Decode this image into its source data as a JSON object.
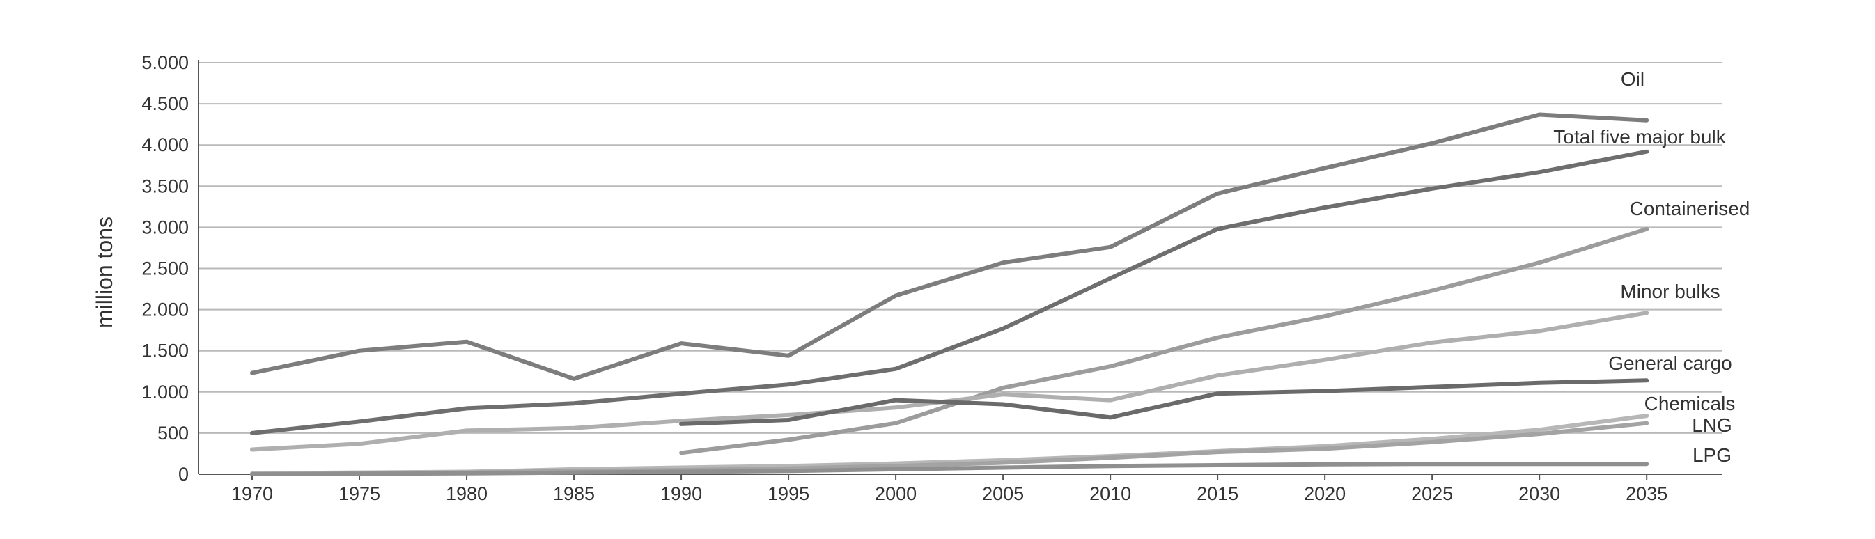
{
  "chart_data": {
    "type": "line",
    "title": "",
    "xlabel": "",
    "ylabel": "million tons",
    "ylim": [
      0,
      5000
    ],
    "yticks": [
      0,
      500,
      1000,
      1500,
      2000,
      2500,
      3000,
      3500,
      4000,
      4500,
      5000
    ],
    "ytick_labels": [
      "0",
      "500",
      "1.000",
      "1.500",
      "2.000",
      "2.500",
      "3.000",
      "3.500",
      "4.000",
      "4.500",
      "5.000"
    ],
    "x": [
      1970,
      1975,
      1980,
      1985,
      1990,
      1995,
      2000,
      2005,
      2010,
      2015,
      2020,
      2025,
      2030,
      2035
    ],
    "xtick_labels": [
      "1970",
      "1975",
      "1980",
      "1985",
      "1990",
      "1995",
      "2000",
      "2005",
      "2010",
      "2015",
      "2020",
      "2025",
      "2030",
      "2035"
    ],
    "grid": true,
    "legend": "labels at line ends",
    "series": [
      {
        "name": "Oil",
        "color": "#7d7d7d",
        "x": [
          1970,
          1975,
          1980,
          1985,
          1990,
          1995,
          2000,
          2005,
          2010,
          2015,
          2020,
          2025,
          2030,
          2035
        ],
        "values": [
          1230,
          1500,
          1610,
          1160,
          1590,
          1440,
          2170,
          2570,
          2760,
          3410,
          3720,
          4020,
          4370,
          4300
        ]
      },
      {
        "name": "Total five major bulk",
        "color": "#6e6e6e",
        "x": [
          1970,
          1975,
          1980,
          1985,
          1990,
          1995,
          2000,
          2005,
          2010,
          2015,
          2020,
          2025,
          2030,
          2035
        ],
        "values": [
          500,
          640,
          800,
          860,
          980,
          1090,
          1280,
          1770,
          2380,
          2980,
          3240,
          3470,
          3670,
          3920
        ]
      },
      {
        "name": "Containerised",
        "color": "#9c9c9c",
        "x": [
          1990,
          1995,
          2000,
          2005,
          2010,
          2015,
          2020,
          2025,
          2030,
          2035
        ],
        "values": [
          260,
          420,
          620,
          1050,
          1310,
          1660,
          1920,
          2230,
          2570,
          2980
        ]
      },
      {
        "name": "Minor bulks",
        "color": "#afafaf",
        "x": [
          1970,
          1975,
          1980,
          1985,
          1990,
          1995,
          2000,
          2005,
          2010,
          2015,
          2020,
          2025,
          2030,
          2035
        ],
        "values": [
          300,
          370,
          530,
          560,
          650,
          720,
          810,
          970,
          900,
          1200,
          1390,
          1600,
          1740,
          1960
        ]
      },
      {
        "name": "General cargo",
        "color": "#6a6a6a",
        "x": [
          1990,
          1995,
          2000,
          2005,
          2010,
          2015,
          2020,
          2025,
          2030,
          2035
        ],
        "values": [
          610,
          660,
          900,
          850,
          690,
          980,
          1010,
          1060,
          1110,
          1140
        ]
      },
      {
        "name": "Chemicals",
        "color": "#b7b7b7",
        "x": [
          1970,
          1975,
          1980,
          1985,
          1990,
          1995,
          2000,
          2005,
          2010,
          2015,
          2020,
          2025,
          2030,
          2035
        ],
        "values": [
          10,
          20,
          30,
          60,
          80,
          100,
          130,
          170,
          220,
          280,
          340,
          430,
          540,
          710
        ]
      },
      {
        "name": "LNG",
        "color": "#a3a3a3",
        "x": [
          1970,
          1975,
          1980,
          1985,
          1990,
          1995,
          2000,
          2005,
          2010,
          2015,
          2020,
          2025,
          2030,
          2035
        ],
        "values": [
          0,
          10,
          20,
          40,
          50,
          70,
          100,
          140,
          200,
          270,
          310,
          390,
          490,
          620
        ]
      },
      {
        "name": "LPG",
        "color": "#8f8f8f",
        "x": [
          1970,
          1975,
          1980,
          1985,
          1990,
          1995,
          2000,
          2005,
          2010,
          2015,
          2020,
          2025,
          2030,
          2035
        ],
        "values": [
          0,
          5,
          10,
          20,
          30,
          40,
          60,
          80,
          100,
          110,
          120,
          125,
          125,
          125
        ]
      }
    ]
  }
}
